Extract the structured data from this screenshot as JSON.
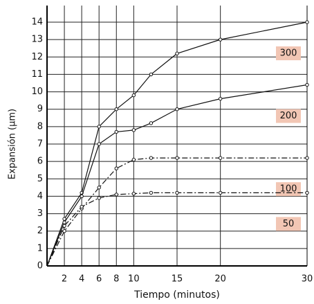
{
  "chart_data": {
    "type": "line",
    "x_label": "Tiempo (minutos)",
    "y_label": "Expansión (µm)",
    "x": [
      0,
      2,
      4,
      6,
      8,
      10,
      12,
      15,
      20,
      30
    ],
    "series": [
      {
        "name": "300",
        "color": "#111111",
        "style": "solid",
        "values": [
          0,
          2.7,
          4.2,
          8.0,
          9.0,
          9.8,
          11.0,
          12.2,
          13.0,
          14.0
        ]
      },
      {
        "name": "200",
        "color": "#111111",
        "style": "solid",
        "values": [
          0,
          2.5,
          4.0,
          7.0,
          7.7,
          7.8,
          8.2,
          9.0,
          9.6,
          10.4
        ]
      },
      {
        "name": "100",
        "color": "#111111",
        "style": "dashdot",
        "values": [
          0,
          2.0,
          3.3,
          4.5,
          5.6,
          6.1,
          6.2,
          6.2,
          6.2,
          6.2
        ]
      },
      {
        "name": "50",
        "color": "#111111",
        "style": "dashdot",
        "values": [
          0,
          2.3,
          3.4,
          3.9,
          4.1,
          4.15,
          4.2,
          4.2,
          4.2,
          4.2
        ]
      }
    ],
    "xlim": [
      0,
      30
    ],
    "xticks": [
      2,
      4,
      6,
      8,
      10,
      15,
      20,
      30
    ],
    "ylim": [
      0,
      14
    ],
    "yticks": [
      0,
      1,
      2,
      3,
      4,
      5,
      6,
      7,
      8,
      9,
      10,
      11,
      12,
      13,
      14
    ],
    "grid": true,
    "label_color": "#f2c6b4"
  }
}
